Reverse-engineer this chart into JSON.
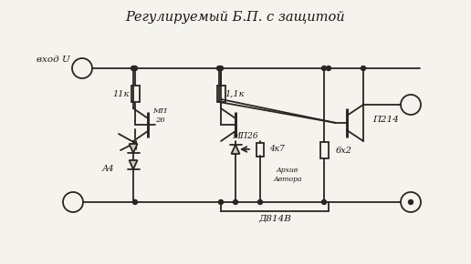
{
  "title": "Регулируемый Б.П. с защитой",
  "bg_color": "#f5f3ee",
  "line_color": "#2a2520",
  "text_color": "#1a1510",
  "figsize": [
    5.16,
    2.9
  ],
  "dpi": 100,
  "labels": {
    "input": "вход U",
    "r1": "11к",
    "r2": "1,1к",
    "r3": "4к7",
    "r4": "6х2",
    "t1": "МП26",
    "t2": "МП\n26",
    "t3": "П214",
    "d1": "А4",
    "d2": "Д814В",
    "annotation": "Архив\nАвтора"
  }
}
